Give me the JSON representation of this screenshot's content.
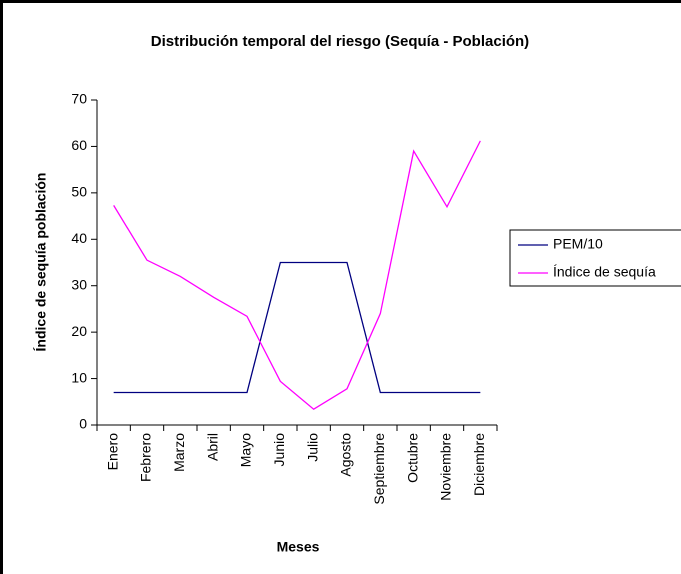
{
  "chart_data": {
    "type": "line",
    "title": "Distribución temporal del riesgo (Sequía - Población)",
    "x_label": "Meses",
    "y_label": "Índice de sequía población",
    "categories": [
      "Enero",
      "Febrero",
      "Marzo",
      "Abril",
      "Mayo",
      "Junio",
      "Julio",
      "Agosto",
      "Septiembre",
      "Octubre",
      "Noviembre",
      "Diciembre"
    ],
    "series": [
      {
        "name": "PEM/10",
        "color": "#000080",
        "values": [
          7,
          7,
          7,
          7,
          7,
          35,
          35,
          35,
          7,
          7,
          7,
          7
        ]
      },
      {
        "name": "Índice de sequía",
        "color": "#ff00ff",
        "values": [
          47.3,
          35.5,
          32,
          27.5,
          23.4,
          9.4,
          3.4,
          7.8,
          24,
          59,
          47,
          61.2
        ]
      }
    ],
    "ylim": [
      0,
      70
    ],
    "yticks": [
      0,
      10,
      20,
      30,
      40,
      50,
      60,
      70
    ],
    "grid": false,
    "legend": "right"
  }
}
